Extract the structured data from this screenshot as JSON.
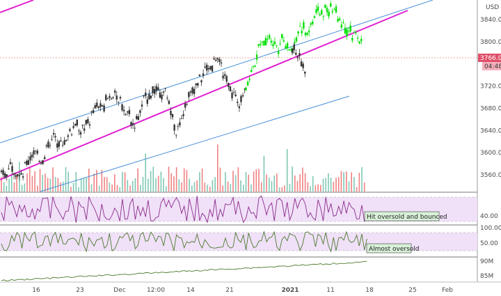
{
  "chart_data": {
    "type": "candlestick",
    "currency_label": "USD",
    "price_axis": {
      "ylim": [
        3530,
        3875
      ],
      "ticks": [
        "3840.00",
        "3800.00",
        "3766.00",
        "3720.00",
        "3680.00",
        "3640.00",
        "3600.00",
        "3560.00"
      ],
      "last_price_label": "3766.00",
      "countdown_label": "04:48",
      "last_price": 3766
    },
    "x_axis": {
      "tick_labels": [
        "16",
        "23",
        "Dec",
        "12:00",
        "14",
        "21",
        "2021",
        "11",
        "18",
        "25",
        "Feb"
      ]
    },
    "series": [
      {
        "name": "",
        "segment": "gray",
        "approx_path": [
          [
            0,
            3555
          ],
          [
            4,
            3580
          ],
          [
            8,
            3560
          ],
          [
            12,
            3600
          ],
          [
            16,
            3590
          ],
          [
            20,
            3630
          ],
          [
            24,
            3615
          ],
          [
            28,
            3650
          ],
          [
            32,
            3640
          ],
          [
            36,
            3675
          ],
          [
            40,
            3690
          ],
          [
            44,
            3705
          ],
          [
            48,
            3680
          ],
          [
            52,
            3650
          ],
          [
            56,
            3700
          ],
          [
            60,
            3715
          ],
          [
            64,
            3705
          ],
          [
            68,
            3640
          ],
          [
            72,
            3690
          ],
          [
            76,
            3730
          ],
          [
            80,
            3750
          ],
          [
            84,
            3770
          ],
          [
            88,
            3720
          ],
          [
            92,
            3690
          ],
          [
            95,
            3715
          ]
        ]
      },
      {
        "name": "",
        "segment": "green",
        "approx_path": [
          [
            95,
            3720
          ],
          [
            98,
            3760
          ],
          [
            101,
            3800
          ],
          [
            104,
            3810
          ],
          [
            107,
            3790
          ],
          [
            110,
            3805
          ],
          [
            113,
            3780
          ],
          [
            116,
            3830
          ],
          [
            119,
            3815
          ],
          [
            122,
            3850
          ],
          [
            125,
            3855
          ],
          [
            128,
            3860
          ],
          [
            131,
            3845
          ],
          [
            134,
            3825
          ],
          [
            137,
            3810
          ],
          [
            140,
            3795
          ]
        ]
      },
      {
        "name": "",
        "segment": "gray-tail",
        "approx_path": [
          [
            113,
            3790
          ],
          [
            116,
            3770
          ],
          [
            118,
            3750
          ]
        ]
      }
    ],
    "volume": {
      "note": "volume histogram bars at bottom of price pane"
    },
    "indicators": [
      {
        "name": "",
        "ticks": [
          "40.00"
        ],
        "annotation": "Hit oversold and bounced"
      },
      {
        "name": "",
        "ticks": [
          "100.00",
          "50.00"
        ],
        "annotation": "Almost oversold"
      },
      {
        "name": "",
        "ticks": [
          "90M",
          "85M"
        ]
      }
    ],
    "trendlines": {
      "channel_color": "#4a90d9",
      "midline_color": "#e020d0"
    },
    "colors": {
      "up_highlight": "#00e000",
      "down_highlight": "#00c800",
      "candle": "#333333",
      "volume_up": "#7ec8b4",
      "volume_down": "#f08080",
      "indicator_line": "#8a2a8a",
      "indicator_line2": "#4a7a2a",
      "band_fill": "#f0e0f8",
      "price_marker": "#e0506a"
    }
  }
}
